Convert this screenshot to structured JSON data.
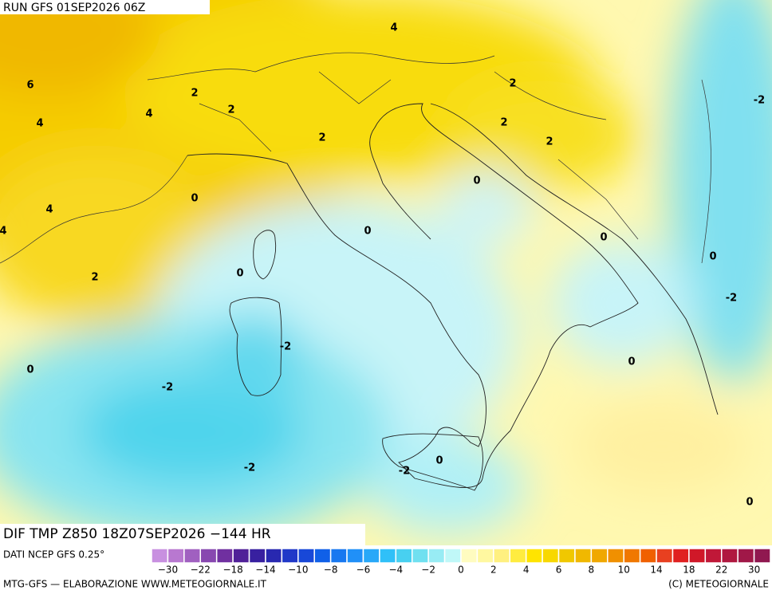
{
  "header": {
    "title": "RUN GFS 01SEP2026 06Z"
  },
  "map": {
    "contour_labels": [
      "4",
      "6",
      "2",
      "2",
      "4",
      "4",
      "2",
      "2",
      "2",
      "2",
      "-2",
      "0",
      "0",
      "4",
      "4",
      "0",
      "0",
      "0",
      "2",
      "0",
      "-2",
      "-2",
      "0",
      "0",
      "-2",
      "0",
      "-2",
      "-2",
      "0"
    ]
  },
  "field": {
    "title": "DIF TMP Z850 18Z07SEP2026 −144 HR",
    "source": "DATI NCEP GFS 0.25°"
  },
  "legend": {
    "colors": [
      "#c890e0",
      "#b878d0",
      "#a060c0",
      "#8848b0",
      "#7030a0",
      "#502098",
      "#3820a0",
      "#2828b0",
      "#2038c8",
      "#1848d8",
      "#1060e8",
      "#1878f0",
      "#2090f8",
      "#28a8f8",
      "#30c0f8",
      "#48d0f0",
      "#70e0f0",
      "#98ecf4",
      "#c0f8f8",
      "#fffcc0",
      "#fff8a0",
      "#fff080",
      "#ffec40",
      "#ffe400",
      "#f8d800",
      "#f0c800",
      "#f0b800",
      "#f0a800",
      "#f09000",
      "#f07800",
      "#f06000",
      "#e84020",
      "#e02020",
      "#d01828",
      "#c01838",
      "#b01840",
      "#a01848",
      "#901850"
    ],
    "labels": [
      "−30",
      "−22",
      "−18",
      "−14",
      "−10",
      "−8",
      "−6",
      "−4",
      "−2",
      "0",
      "2",
      "4",
      "6",
      "8",
      "10",
      "14",
      "18",
      "22",
      "30"
    ]
  },
  "footer": {
    "left": "MTG-GFS — ELABORAZIONE WWW.METEOGIORNALE.IT",
    "right": "(C) METEOGIORNALE"
  }
}
